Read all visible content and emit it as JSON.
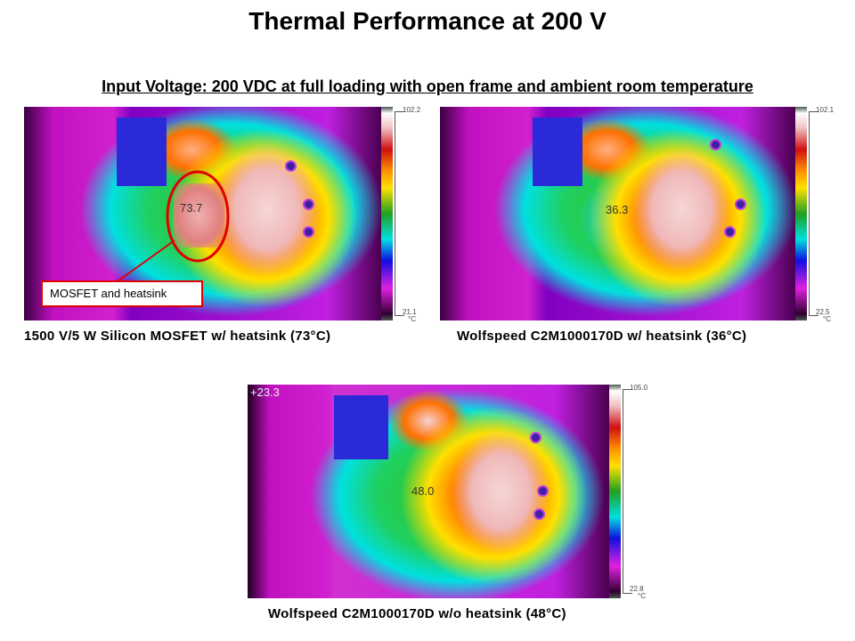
{
  "title": "Thermal Performance at 200 V",
  "subtitle": "Input Voltage: 200 VDC at full loading with open frame and ambient room temperature",
  "images": [
    {
      "caption": "1500 V/5 W Silicon  MOSFET w/ heatsink (73°C)",
      "spot_reading": "73.7",
      "scale_max": "102.2",
      "scale_min": "21.1",
      "unit": "°C"
    },
    {
      "caption": "Wolfspeed C2M1000170D w/ heatsink (36°C)",
      "spot_reading": "36.3",
      "scale_max": "102.1",
      "scale_min": "22.5",
      "unit": "°C"
    },
    {
      "caption": "Wolfspeed C2M1000170D w/o heatsink (48°C)",
      "spot_reading": "48.0",
      "corner_reading": "+23.3",
      "scale_max": "105.0",
      "scale_min": "22.8",
      "unit": "°C"
    }
  ],
  "callout": {
    "label": "MOSFET and heatsink",
    "color": "#e00000"
  }
}
